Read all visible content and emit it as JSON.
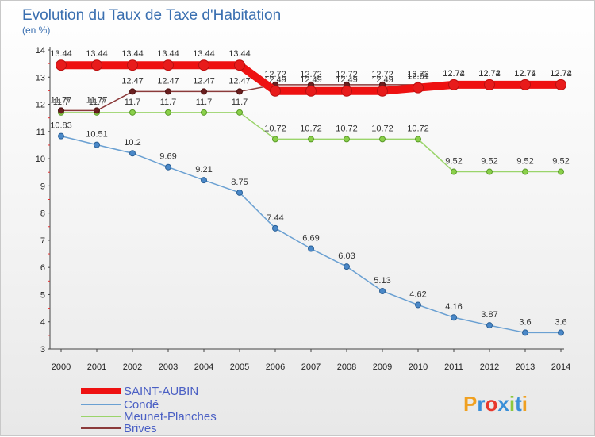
{
  "chart_data": {
    "type": "line",
    "title": "Evolution du Taux de Taxe d'Habitation",
    "ylabel": "(en %)",
    "xlabel": "",
    "ylim": [
      3,
      14
    ],
    "yticks": [
      3,
      4,
      5,
      6,
      7,
      8,
      9,
      10,
      11,
      12,
      13,
      14
    ],
    "x": [
      "2000",
      "2001",
      "2002",
      "2003",
      "2004",
      "2005",
      "2006",
      "2007",
      "2008",
      "2009",
      "2010",
      "2011",
      "2012",
      "2013",
      "2014"
    ],
    "series": [
      {
        "name": "SAINT-AUBIN",
        "color": "#ee1111",
        "values": [
          13.44,
          13.44,
          13.44,
          13.44,
          13.44,
          13.44,
          12.49,
          12.49,
          12.49,
          12.49,
          12.61,
          12.72,
          12.72,
          12.72,
          12.72
        ],
        "labels": [
          "13.44",
          "13.44",
          "13.44",
          "13.44",
          "13.44",
          "13.44",
          "12.49",
          "12.49",
          "12.49",
          "12.49",
          "12.61",
          "12.72",
          "12.72",
          "12.72",
          "12.72"
        ]
      },
      {
        "name": "Condé",
        "color": "#6aa0d2",
        "values": [
          10.83,
          10.51,
          10.2,
          9.69,
          9.21,
          8.75,
          7.44,
          6.69,
          6.03,
          5.13,
          4.62,
          4.16,
          3.87,
          3.6,
          3.6
        ],
        "labels": [
          "10.83",
          "10.51",
          "10.2",
          "9.69",
          "9.21",
          "8.75",
          "7.44",
          "6.69",
          "6.03",
          "5.13",
          "4.62",
          "4.16",
          "3.87",
          "3.6",
          "3.6"
        ]
      },
      {
        "name": "Meunet-Planches",
        "color": "#9ad46a",
        "values": [
          11.7,
          11.7,
          11.7,
          11.7,
          11.7,
          11.7,
          10.72,
          10.72,
          10.72,
          10.72,
          10.72,
          9.52,
          9.52,
          9.52,
          9.52
        ],
        "labels": [
          "11.7",
          "11.7",
          "11.7",
          "11.7",
          "11.7",
          "11.7",
          "10.72",
          "10.72",
          "10.72",
          "10.72",
          "10.72",
          "9.52",
          "9.52",
          "9.52",
          "9.52"
        ]
      },
      {
        "name": "Brives",
        "color": "#8b3a3a",
        "values": [
          11.77,
          11.77,
          12.47,
          12.47,
          12.47,
          12.47,
          12.72,
          12.72,
          12.72,
          12.72,
          12.72,
          12.74,
          12.74,
          12.74,
          12.74
        ],
        "labels": [
          "11.77",
          "11.77",
          "12.47",
          "12.47",
          "12.47",
          "12.47",
          "12.72",
          "12.72",
          "12.72",
          "12.72",
          "12.72",
          "12.74",
          "12.74",
          "12.74",
          "12.74"
        ]
      }
    ],
    "legend": {
      "placement": "bottom-left",
      "entries": [
        "SAINT-AUBIN",
        "Condé",
        "Meunet-Planches",
        "Brives"
      ]
    }
  },
  "branding": {
    "logo_text": "Proxiti",
    "logo_colors": [
      "#f0a020",
      "#3a8fd8",
      "#e8382c",
      "#3a8fd8",
      "#8cc83c",
      "#3a8fd8",
      "#f0a020"
    ]
  }
}
